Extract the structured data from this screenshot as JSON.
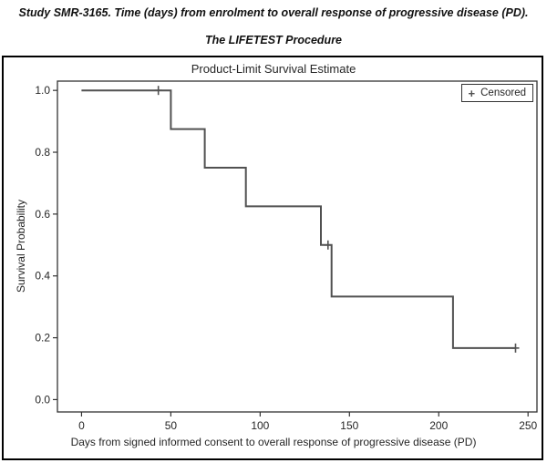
{
  "page": {
    "title_line1": "Study SMR-3165. Time (days) from enrolment to overall response of progressive disease (PD).",
    "title_line2": "The LIFETEST Procedure"
  },
  "chart": {
    "title": "Product-Limit Survival Estimate",
    "xlabel": "Days from signed informed consent to overall response of progressive disease (PD)",
    "ylabel": "Survival Probability",
    "legend": {
      "symbol": "+",
      "label": "Censored"
    }
  },
  "chart_data": {
    "type": "line",
    "step": true,
    "title": "Product-Limit Survival Estimate",
    "xlabel": "Days from signed informed consent to overall response of progressive disease (PD)",
    "ylabel": "Survival Probability",
    "series": [
      {
        "name": "Product-limit survival estimate",
        "points": [
          [
            0,
            1.0
          ],
          [
            50,
            1.0
          ],
          [
            50,
            0.875
          ],
          [
            69,
            0.875
          ],
          [
            69,
            0.75
          ],
          [
            92,
            0.75
          ],
          [
            92,
            0.625
          ],
          [
            134,
            0.625
          ],
          [
            134,
            0.5
          ],
          [
            140,
            0.5
          ],
          [
            140,
            0.3333
          ],
          [
            208,
            0.3333
          ],
          [
            208,
            0.1667
          ],
          [
            243,
            0.1667
          ]
        ]
      }
    ],
    "censored_points": [
      [
        43,
        1.0
      ],
      [
        138,
        0.5
      ],
      [
        243,
        0.1667
      ]
    ],
    "xticks": [
      0,
      50,
      100,
      150,
      200,
      250
    ],
    "xtick_labels": [
      "0",
      "50",
      "100",
      "150",
      "200",
      "250"
    ],
    "yticks": [
      1.0,
      0.8,
      0.6,
      0.4,
      0.2,
      0.0
    ],
    "ytick_labels": [
      "1.0",
      "0.8",
      "0.6",
      "0.4",
      "0.2",
      "0.0"
    ],
    "xlim": [
      -13.5,
      255
    ],
    "ylim": [
      -0.04,
      1.03
    ],
    "grid": false,
    "legend_position": "top-right",
    "legend_entries": [
      "Censored"
    ],
    "colors": {
      "curve": "#515151",
      "axis": "#333333",
      "text": "#262626",
      "frame": "#000000"
    }
  }
}
